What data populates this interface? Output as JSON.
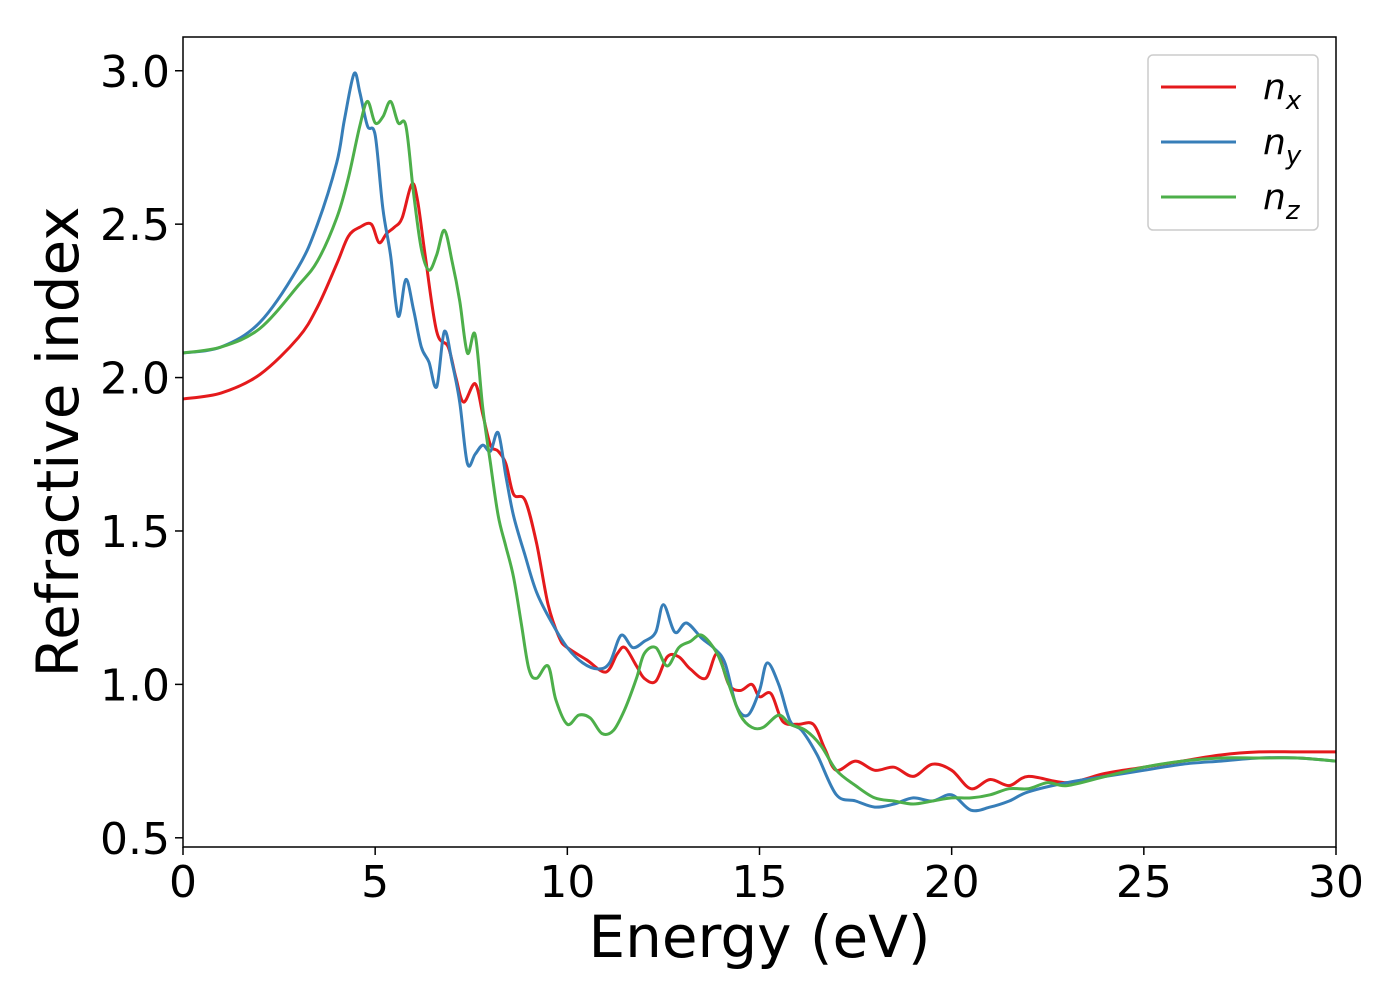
{
  "chart_data": {
    "type": "line",
    "xlabel": "Energy (eV)",
    "ylabel": "Refractive index",
    "xlim": [
      0,
      30
    ],
    "ylim": [
      0.47,
      3.11
    ],
    "x_ticks": [
      "0",
      "5",
      "10",
      "15",
      "20",
      "25",
      "30"
    ],
    "y_ticks": [
      "0.5",
      "1.0",
      "1.5",
      "2.0",
      "2.5",
      "3.0"
    ],
    "grid": false,
    "legend_position": "top-right",
    "series": [
      {
        "name": "n",
        "subscript": "x",
        "color": "#e41a1c",
        "x": [
          0,
          1,
          2,
          3,
          3.5,
          4,
          4.3,
          4.6,
          4.9,
          5.1,
          5.3,
          5.5,
          5.7,
          5.95,
          6.1,
          6.3,
          6.6,
          6.9,
          7.1,
          7.3,
          7.6,
          7.8,
          8.0,
          8.2,
          8.4,
          8.6,
          8.9,
          9.2,
          9.5,
          9.8,
          10.0,
          10.5,
          11.0,
          11.3,
          11.5,
          11.8,
          12.0,
          12.3,
          12.6,
          12.9,
          13.2,
          13.6,
          13.9,
          14.2,
          14.5,
          14.8,
          15.0,
          15.3,
          15.6,
          16.0,
          16.4,
          16.7,
          17.0,
          17.5,
          18.0,
          18.5,
          19.0,
          19.5,
          20.0,
          20.5,
          21.0,
          21.5,
          22.0,
          23.0,
          24.0,
          25.0,
          26.0,
          27.0,
          28.0,
          29.0,
          30.0
        ],
        "y": [
          1.93,
          1.95,
          2.01,
          2.13,
          2.23,
          2.37,
          2.46,
          2.49,
          2.5,
          2.44,
          2.47,
          2.49,
          2.52,
          2.63,
          2.58,
          2.4,
          2.15,
          2.1,
          2.0,
          1.92,
          1.98,
          1.88,
          1.78,
          1.76,
          1.72,
          1.62,
          1.6,
          1.46,
          1.26,
          1.15,
          1.12,
          1.08,
          1.04,
          1.1,
          1.12,
          1.06,
          1.02,
          1.01,
          1.09,
          1.09,
          1.05,
          1.02,
          1.1,
          1.0,
          0.98,
          1.0,
          0.96,
          0.97,
          0.88,
          0.87,
          0.87,
          0.79,
          0.72,
          0.75,
          0.72,
          0.73,
          0.7,
          0.74,
          0.72,
          0.66,
          0.69,
          0.67,
          0.7,
          0.68,
          0.71,
          0.73,
          0.75,
          0.77,
          0.78,
          0.78,
          0.78
        ]
      },
      {
        "name": "n",
        "subscript": "y",
        "color": "#377eb8",
        "x": [
          0,
          1,
          2,
          3,
          3.5,
          4,
          4.2,
          4.45,
          4.6,
          4.8,
          5.0,
          5.2,
          5.4,
          5.6,
          5.8,
          6.0,
          6.2,
          6.4,
          6.6,
          6.8,
          7.0,
          7.2,
          7.4,
          7.6,
          7.8,
          8.0,
          8.2,
          8.4,
          8.6,
          8.9,
          9.2,
          9.6,
          10.0,
          10.4,
          10.8,
          11.1,
          11.4,
          11.7,
          12.0,
          12.3,
          12.5,
          12.8,
          13.1,
          13.5,
          13.8,
          14.1,
          14.4,
          14.7,
          15.0,
          15.2,
          15.5,
          15.8,
          16.1,
          16.5,
          17.0,
          17.5,
          18.0,
          18.5,
          19.0,
          19.5,
          20.0,
          20.5,
          21.0,
          21.5,
          22.0,
          23.0,
          24.0,
          25.0,
          26.0,
          27.0,
          28.0,
          29.0,
          30.0
        ],
        "y": [
          2.08,
          2.1,
          2.18,
          2.36,
          2.5,
          2.7,
          2.84,
          2.99,
          2.93,
          2.82,
          2.79,
          2.55,
          2.4,
          2.2,
          2.32,
          2.22,
          2.1,
          2.05,
          1.97,
          2.15,
          2.05,
          1.92,
          1.72,
          1.75,
          1.78,
          1.76,
          1.82,
          1.68,
          1.55,
          1.42,
          1.3,
          1.2,
          1.12,
          1.07,
          1.05,
          1.07,
          1.16,
          1.12,
          1.14,
          1.17,
          1.26,
          1.17,
          1.2,
          1.15,
          1.12,
          1.07,
          0.93,
          0.9,
          0.98,
          1.07,
          1.0,
          0.88,
          0.85,
          0.77,
          0.64,
          0.62,
          0.6,
          0.61,
          0.63,
          0.62,
          0.64,
          0.59,
          0.6,
          0.62,
          0.65,
          0.68,
          0.7,
          0.72,
          0.74,
          0.75,
          0.76,
          0.76,
          0.75
        ]
      },
      {
        "name": "n",
        "subscript": "z",
        "color": "#4daf4a",
        "x": [
          0,
          1,
          2,
          3,
          3.5,
          4,
          4.3,
          4.6,
          4.8,
          5.0,
          5.2,
          5.4,
          5.6,
          5.8,
          6.0,
          6.2,
          6.4,
          6.6,
          6.8,
          7.0,
          7.2,
          7.4,
          7.6,
          7.8,
          8.0,
          8.2,
          8.4,
          8.6,
          8.8,
          9.0,
          9.2,
          9.5,
          9.7,
          10.0,
          10.3,
          10.6,
          10.9,
          11.2,
          11.5,
          11.8,
          12.0,
          12.3,
          12.6,
          12.9,
          13.2,
          13.5,
          13.9,
          14.2,
          14.5,
          14.8,
          15.1,
          15.5,
          15.8,
          16.2,
          16.6,
          17.0,
          17.5,
          18.0,
          18.5,
          19.0,
          19.5,
          20.0,
          20.5,
          21.0,
          21.5,
          22.0,
          22.5,
          23.0,
          24.0,
          25.0,
          26.0,
          27.0,
          28.0,
          29.0,
          30.0
        ],
        "y": [
          2.08,
          2.1,
          2.16,
          2.3,
          2.38,
          2.52,
          2.65,
          2.82,
          2.9,
          2.83,
          2.85,
          2.9,
          2.83,
          2.82,
          2.6,
          2.42,
          2.35,
          2.4,
          2.48,
          2.38,
          2.25,
          2.08,
          2.14,
          1.9,
          1.72,
          1.55,
          1.45,
          1.35,
          1.2,
          1.05,
          1.02,
          1.06,
          0.95,
          0.87,
          0.9,
          0.89,
          0.84,
          0.85,
          0.92,
          1.02,
          1.1,
          1.12,
          1.06,
          1.12,
          1.14,
          1.16,
          1.1,
          1.0,
          0.9,
          0.86,
          0.86,
          0.9,
          0.87,
          0.85,
          0.8,
          0.72,
          0.67,
          0.63,
          0.62,
          0.61,
          0.62,
          0.63,
          0.63,
          0.64,
          0.66,
          0.66,
          0.68,
          0.67,
          0.7,
          0.73,
          0.75,
          0.76,
          0.76,
          0.76,
          0.75
        ]
      }
    ]
  }
}
